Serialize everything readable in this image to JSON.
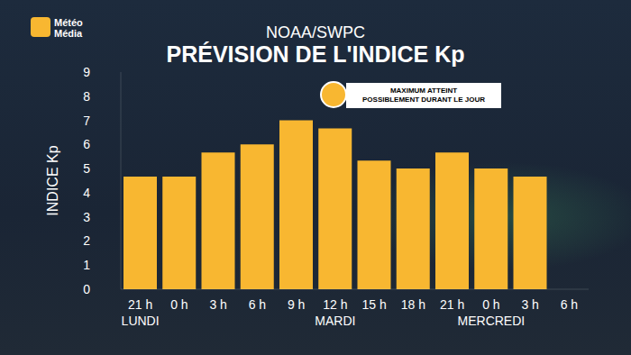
{
  "chart_data": {
    "type": "bar",
    "logo": "Météo Média",
    "subtitle": "NOAA/SWPC",
    "title": "PRÉVISION DE L'INDICE Kp",
    "y_label": "INDICE Kp",
    "annotation": "MAXIMUM ATTEINT\nPOSSIBLEMENT DURANT LE JOUR",
    "categories": [
      "21 h",
      "0 h",
      "3 h",
      "6 h",
      "9 h",
      "12 h",
      "15 h",
      "18 h",
      "21 h",
      "0 h",
      "3 h",
      "6 h"
    ],
    "day_labels": [
      "LUNDI",
      null,
      null,
      null,
      null,
      "MARDI",
      null,
      null,
      null,
      "MERCREDI",
      null,
      null
    ],
    "values": [
      4.67,
      4.67,
      5.67,
      6,
      7,
      6.67,
      5.33,
      5,
      5.67,
      5,
      4.67,
      null
    ],
    "color": "#f8b731",
    "ylim": [
      0,
      9
    ],
    "yticks": [
      0,
      1,
      2,
      3,
      4,
      5,
      6,
      7,
      8,
      9
    ],
    "grid": false
  }
}
